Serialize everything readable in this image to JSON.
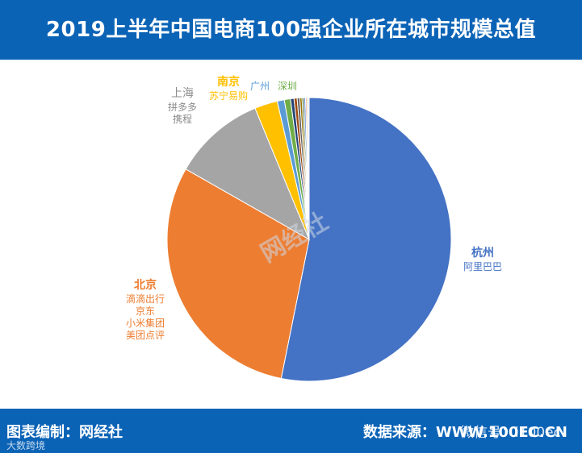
{
  "title": "2019上半年中国电商100强企业所在城市规模总值",
  "footer": {
    "left": "图表编制：网经社",
    "right": "数据来源：WWW.100EC.CN"
  },
  "watermarks": {
    "wechat": "微信号：i100ec",
    "corner": "大数跨境",
    "logo": "网经社"
  },
  "chart_data": {
    "type": "pie",
    "title": "2019上半年中国电商100强企业所在城市规模总值",
    "slices": [
      {
        "label": "杭州",
        "value": 53.0,
        "color": "#4472c4",
        "companies": [
          "阿里巴巴"
        ]
      },
      {
        "label": "北京",
        "value": 30.0,
        "color": "#ed7d31",
        "companies": [
          "滴滴出行",
          "京东",
          "小米集团",
          "美团点评"
        ]
      },
      {
        "label": "上海",
        "value": 10.5,
        "color": "#a5a5a5",
        "companies": [
          "拼多多",
          "携程"
        ]
      },
      {
        "label": "南京",
        "value": 2.6,
        "color": "#ffc000",
        "companies": [
          "苏宁易购"
        ]
      },
      {
        "label": "广州",
        "value": 0.8,
        "color": "#5b9bd5",
        "companies": []
      },
      {
        "label": "深圳",
        "value": 0.7,
        "color": "#70ad47",
        "companies": []
      },
      {
        "label": "",
        "value": 0.4,
        "color": "#264478",
        "companies": []
      },
      {
        "label": "",
        "value": 0.35,
        "color": "#9e480e",
        "companies": []
      },
      {
        "label": "",
        "value": 0.3,
        "color": "#636363",
        "companies": []
      },
      {
        "label": "",
        "value": 0.25,
        "color": "#997300",
        "companies": []
      },
      {
        "label": "",
        "value": 0.2,
        "color": "#43682b",
        "companies": []
      },
      {
        "label": "",
        "value": 0.2,
        "color": "#698ed0",
        "companies": []
      },
      {
        "label": "",
        "value": 0.15,
        "color": "#f1975a",
        "companies": []
      },
      {
        "label": "",
        "value": 0.15,
        "color": "#b7b7b7",
        "companies": []
      },
      {
        "label": "",
        "value": 0.1,
        "color": "#ffcd33",
        "companies": []
      }
    ],
    "start_angle_deg": 0,
    "direction": "clockwise"
  }
}
